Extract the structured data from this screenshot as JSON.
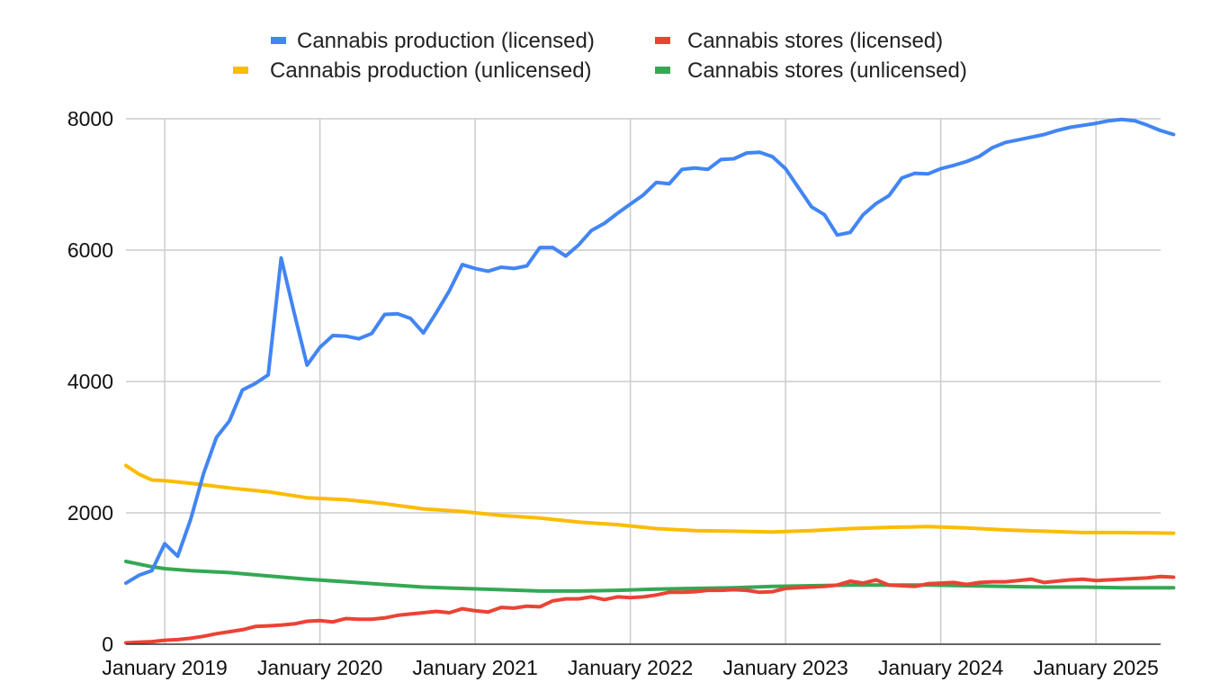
{
  "chart_data": {
    "type": "line",
    "title": "",
    "xlabel": "",
    "ylabel": "",
    "x_type": "month",
    "x_start": "2018-10",
    "x_end": "2025-06",
    "ylim": [
      0,
      8000
    ],
    "yticks": [
      0,
      2000,
      4000,
      6000,
      8000
    ],
    "ytick_labels": [
      "0",
      "2000",
      "4000",
      "6000",
      "8000"
    ],
    "xticks": [
      "2019-01",
      "2020-01",
      "2021-01",
      "2022-01",
      "2023-01",
      "2024-01",
      "2025-01"
    ],
    "xtick_labels": [
      "January 2019",
      "January 2020",
      "January 2021",
      "January 2022",
      "January 2023",
      "January 2024",
      "January 2025"
    ],
    "grid": true,
    "legend_position": "top",
    "series": [
      {
        "name": "Cannabis production (licensed)",
        "color": "#4285f4",
        "points": [
          [
            "2018-10",
            930
          ],
          [
            "2018-11",
            1050
          ],
          [
            "2018-12",
            1120
          ],
          [
            "2019-01",
            1530
          ],
          [
            "2019-02",
            1340
          ],
          [
            "2019-03",
            1900
          ],
          [
            "2019-04",
            2600
          ],
          [
            "2019-05",
            3150
          ],
          [
            "2019-06",
            3400
          ],
          [
            "2019-07",
            3870
          ],
          [
            "2019-08",
            3970
          ],
          [
            "2019-09",
            4100
          ],
          [
            "2019-10",
            5880
          ],
          [
            "2019-11",
            5050
          ],
          [
            "2019-12",
            4250
          ],
          [
            "2020-01",
            4520
          ],
          [
            "2020-02",
            4700
          ],
          [
            "2020-03",
            4690
          ],
          [
            "2020-04",
            4650
          ],
          [
            "2020-05",
            4730
          ],
          [
            "2020-06",
            5020
          ],
          [
            "2020-07",
            5030
          ],
          [
            "2020-08",
            4960
          ],
          [
            "2020-09",
            4740
          ],
          [
            "2020-10",
            5050
          ],
          [
            "2020-11",
            5380
          ],
          [
            "2020-12",
            5780
          ],
          [
            "2021-01",
            5720
          ],
          [
            "2021-02",
            5680
          ],
          [
            "2021-03",
            5740
          ],
          [
            "2021-04",
            5720
          ],
          [
            "2021-05",
            5760
          ],
          [
            "2021-06",
            6040
          ],
          [
            "2021-07",
            6040
          ],
          [
            "2021-08",
            5910
          ],
          [
            "2021-09",
            6080
          ],
          [
            "2021-10",
            6300
          ],
          [
            "2021-11",
            6410
          ],
          [
            "2021-12",
            6560
          ],
          [
            "2022-01",
            6700
          ],
          [
            "2022-02",
            6840
          ],
          [
            "2022-03",
            7030
          ],
          [
            "2022-04",
            7010
          ],
          [
            "2022-05",
            7230
          ],
          [
            "2022-06",
            7250
          ],
          [
            "2022-07",
            7230
          ],
          [
            "2022-08",
            7380
          ],
          [
            "2022-09",
            7390
          ],
          [
            "2022-10",
            7480
          ],
          [
            "2022-11",
            7490
          ],
          [
            "2022-12",
            7420
          ],
          [
            "2023-01",
            7240
          ],
          [
            "2023-02",
            6950
          ],
          [
            "2023-03",
            6660
          ],
          [
            "2023-04",
            6540
          ],
          [
            "2023-05",
            6230
          ],
          [
            "2023-06",
            6270
          ],
          [
            "2023-07",
            6540
          ],
          [
            "2023-08",
            6710
          ],
          [
            "2023-09",
            6830
          ],
          [
            "2023-10",
            7100
          ],
          [
            "2023-11",
            7170
          ],
          [
            "2023-12",
            7160
          ],
          [
            "2024-01",
            7240
          ],
          [
            "2024-02",
            7290
          ],
          [
            "2024-03",
            7350
          ],
          [
            "2024-04",
            7430
          ],
          [
            "2024-05",
            7560
          ],
          [
            "2024-06",
            7640
          ],
          [
            "2024-07",
            7680
          ],
          [
            "2024-08",
            7720
          ],
          [
            "2024-09",
            7760
          ],
          [
            "2024-10",
            7820
          ],
          [
            "2024-11",
            7870
          ],
          [
            "2024-12",
            7900
          ],
          [
            "2025-01",
            7930
          ],
          [
            "2025-02",
            7970
          ],
          [
            "2025-03",
            7990
          ],
          [
            "2025-04",
            7970
          ],
          [
            "2025-05",
            7900
          ],
          [
            "2025-06",
            7820
          ],
          [
            "2025-07",
            7760
          ]
        ]
      },
      {
        "name": "Cannabis stores (licensed)",
        "color": "#ea4335",
        "points": [
          [
            "2018-10",
            20
          ],
          [
            "2018-11",
            30
          ],
          [
            "2018-12",
            40
          ],
          [
            "2019-01",
            60
          ],
          [
            "2019-02",
            70
          ],
          [
            "2019-03",
            90
          ],
          [
            "2019-04",
            120
          ],
          [
            "2019-05",
            160
          ],
          [
            "2019-06",
            190
          ],
          [
            "2019-07",
            220
          ],
          [
            "2019-08",
            270
          ],
          [
            "2019-09",
            280
          ],
          [
            "2019-10",
            290
          ],
          [
            "2019-11",
            310
          ],
          [
            "2019-12",
            350
          ],
          [
            "2020-01",
            360
          ],
          [
            "2020-02",
            340
          ],
          [
            "2020-03",
            390
          ],
          [
            "2020-04",
            380
          ],
          [
            "2020-05",
            380
          ],
          [
            "2020-06",
            400
          ],
          [
            "2020-07",
            440
          ],
          [
            "2020-08",
            460
          ],
          [
            "2020-09",
            480
          ],
          [
            "2020-10",
            500
          ],
          [
            "2020-11",
            480
          ],
          [
            "2020-12",
            540
          ],
          [
            "2021-01",
            510
          ],
          [
            "2021-02",
            490
          ],
          [
            "2021-03",
            560
          ],
          [
            "2021-04",
            550
          ],
          [
            "2021-05",
            580
          ],
          [
            "2021-06",
            570
          ],
          [
            "2021-07",
            660
          ],
          [
            "2021-08",
            690
          ],
          [
            "2021-09",
            690
          ],
          [
            "2021-10",
            720
          ],
          [
            "2021-11",
            680
          ],
          [
            "2021-12",
            720
          ],
          [
            "2022-01",
            710
          ],
          [
            "2022-02",
            720
          ],
          [
            "2022-03",
            750
          ],
          [
            "2022-04",
            790
          ],
          [
            "2022-05",
            790
          ],
          [
            "2022-06",
            800
          ],
          [
            "2022-07",
            820
          ],
          [
            "2022-08",
            820
          ],
          [
            "2022-09",
            830
          ],
          [
            "2022-10",
            820
          ],
          [
            "2022-11",
            790
          ],
          [
            "2022-12",
            800
          ],
          [
            "2023-01",
            850
          ],
          [
            "2023-02",
            860
          ],
          [
            "2023-03",
            870
          ],
          [
            "2023-04",
            880
          ],
          [
            "2023-05",
            900
          ],
          [
            "2023-06",
            960
          ],
          [
            "2023-07",
            930
          ],
          [
            "2023-08",
            980
          ],
          [
            "2023-09",
            900
          ],
          [
            "2023-10",
            890
          ],
          [
            "2023-11",
            880
          ],
          [
            "2023-12",
            920
          ],
          [
            "2024-01",
            930
          ],
          [
            "2024-02",
            940
          ],
          [
            "2024-03",
            910
          ],
          [
            "2024-04",
            940
          ],
          [
            "2024-05",
            950
          ],
          [
            "2024-06",
            950
          ],
          [
            "2024-07",
            970
          ],
          [
            "2024-08",
            990
          ],
          [
            "2024-09",
            940
          ],
          [
            "2024-10",
            960
          ],
          [
            "2024-11",
            980
          ],
          [
            "2024-12",
            990
          ],
          [
            "2025-01",
            970
          ],
          [
            "2025-02",
            980
          ],
          [
            "2025-03",
            990
          ],
          [
            "2025-04",
            1000
          ],
          [
            "2025-05",
            1010
          ],
          [
            "2025-06",
            1030
          ],
          [
            "2025-07",
            1020
          ]
        ]
      },
      {
        "name": "Cannabis production (unlicensed)",
        "color": "#fbbc04",
        "points": [
          [
            "2018-10",
            2720
          ],
          [
            "2018-11",
            2590
          ],
          [
            "2018-12",
            2500
          ],
          [
            "2019-01",
            2490
          ],
          [
            "2019-03",
            2450
          ],
          [
            "2019-06",
            2380
          ],
          [
            "2019-09",
            2320
          ],
          [
            "2019-12",
            2230
          ],
          [
            "2020-03",
            2200
          ],
          [
            "2020-06",
            2140
          ],
          [
            "2020-09",
            2060
          ],
          [
            "2020-12",
            2020
          ],
          [
            "2021-03",
            1960
          ],
          [
            "2021-06",
            1920
          ],
          [
            "2021-09",
            1860
          ],
          [
            "2021-12",
            1820
          ],
          [
            "2022-03",
            1760
          ],
          [
            "2022-06",
            1730
          ],
          [
            "2022-09",
            1720
          ],
          [
            "2022-12",
            1710
          ],
          [
            "2023-03",
            1730
          ],
          [
            "2023-06",
            1760
          ],
          [
            "2023-09",
            1780
          ],
          [
            "2023-12",
            1790
          ],
          [
            "2024-03",
            1770
          ],
          [
            "2024-06",
            1740
          ],
          [
            "2024-09",
            1720
          ],
          [
            "2024-12",
            1700
          ],
          [
            "2025-03",
            1700
          ],
          [
            "2025-07",
            1690
          ]
        ]
      },
      {
        "name": "Cannabis stores (unlicensed)",
        "color": "#34a853",
        "points": [
          [
            "2018-10",
            1260
          ],
          [
            "2018-11",
            1220
          ],
          [
            "2018-12",
            1180
          ],
          [
            "2019-01",
            1150
          ],
          [
            "2019-03",
            1120
          ],
          [
            "2019-06",
            1090
          ],
          [
            "2019-09",
            1040
          ],
          [
            "2019-12",
            990
          ],
          [
            "2020-03",
            950
          ],
          [
            "2020-06",
            910
          ],
          [
            "2020-09",
            870
          ],
          [
            "2020-12",
            850
          ],
          [
            "2021-03",
            830
          ],
          [
            "2021-06",
            810
          ],
          [
            "2021-09",
            810
          ],
          [
            "2021-12",
            820
          ],
          [
            "2022-03",
            840
          ],
          [
            "2022-06",
            850
          ],
          [
            "2022-09",
            860
          ],
          [
            "2022-12",
            880
          ],
          [
            "2023-03",
            890
          ],
          [
            "2023-06",
            900
          ],
          [
            "2023-09",
            900
          ],
          [
            "2023-12",
            900
          ],
          [
            "2024-03",
            890
          ],
          [
            "2024-06",
            880
          ],
          [
            "2024-09",
            870
          ],
          [
            "2024-12",
            870
          ],
          [
            "2025-03",
            860
          ],
          [
            "2025-07",
            860
          ]
        ]
      }
    ],
    "legend": [
      {
        "name": "Cannabis production (licensed)",
        "color": "#4285f4"
      },
      {
        "name": "Cannabis stores (licensed)",
        "color": "#ea4335"
      },
      {
        "name": "Cannabis production (unlicensed)",
        "color": "#fbbc04"
      },
      {
        "name": "Cannabis stores (unlicensed)",
        "color": "#34a853"
      }
    ]
  }
}
